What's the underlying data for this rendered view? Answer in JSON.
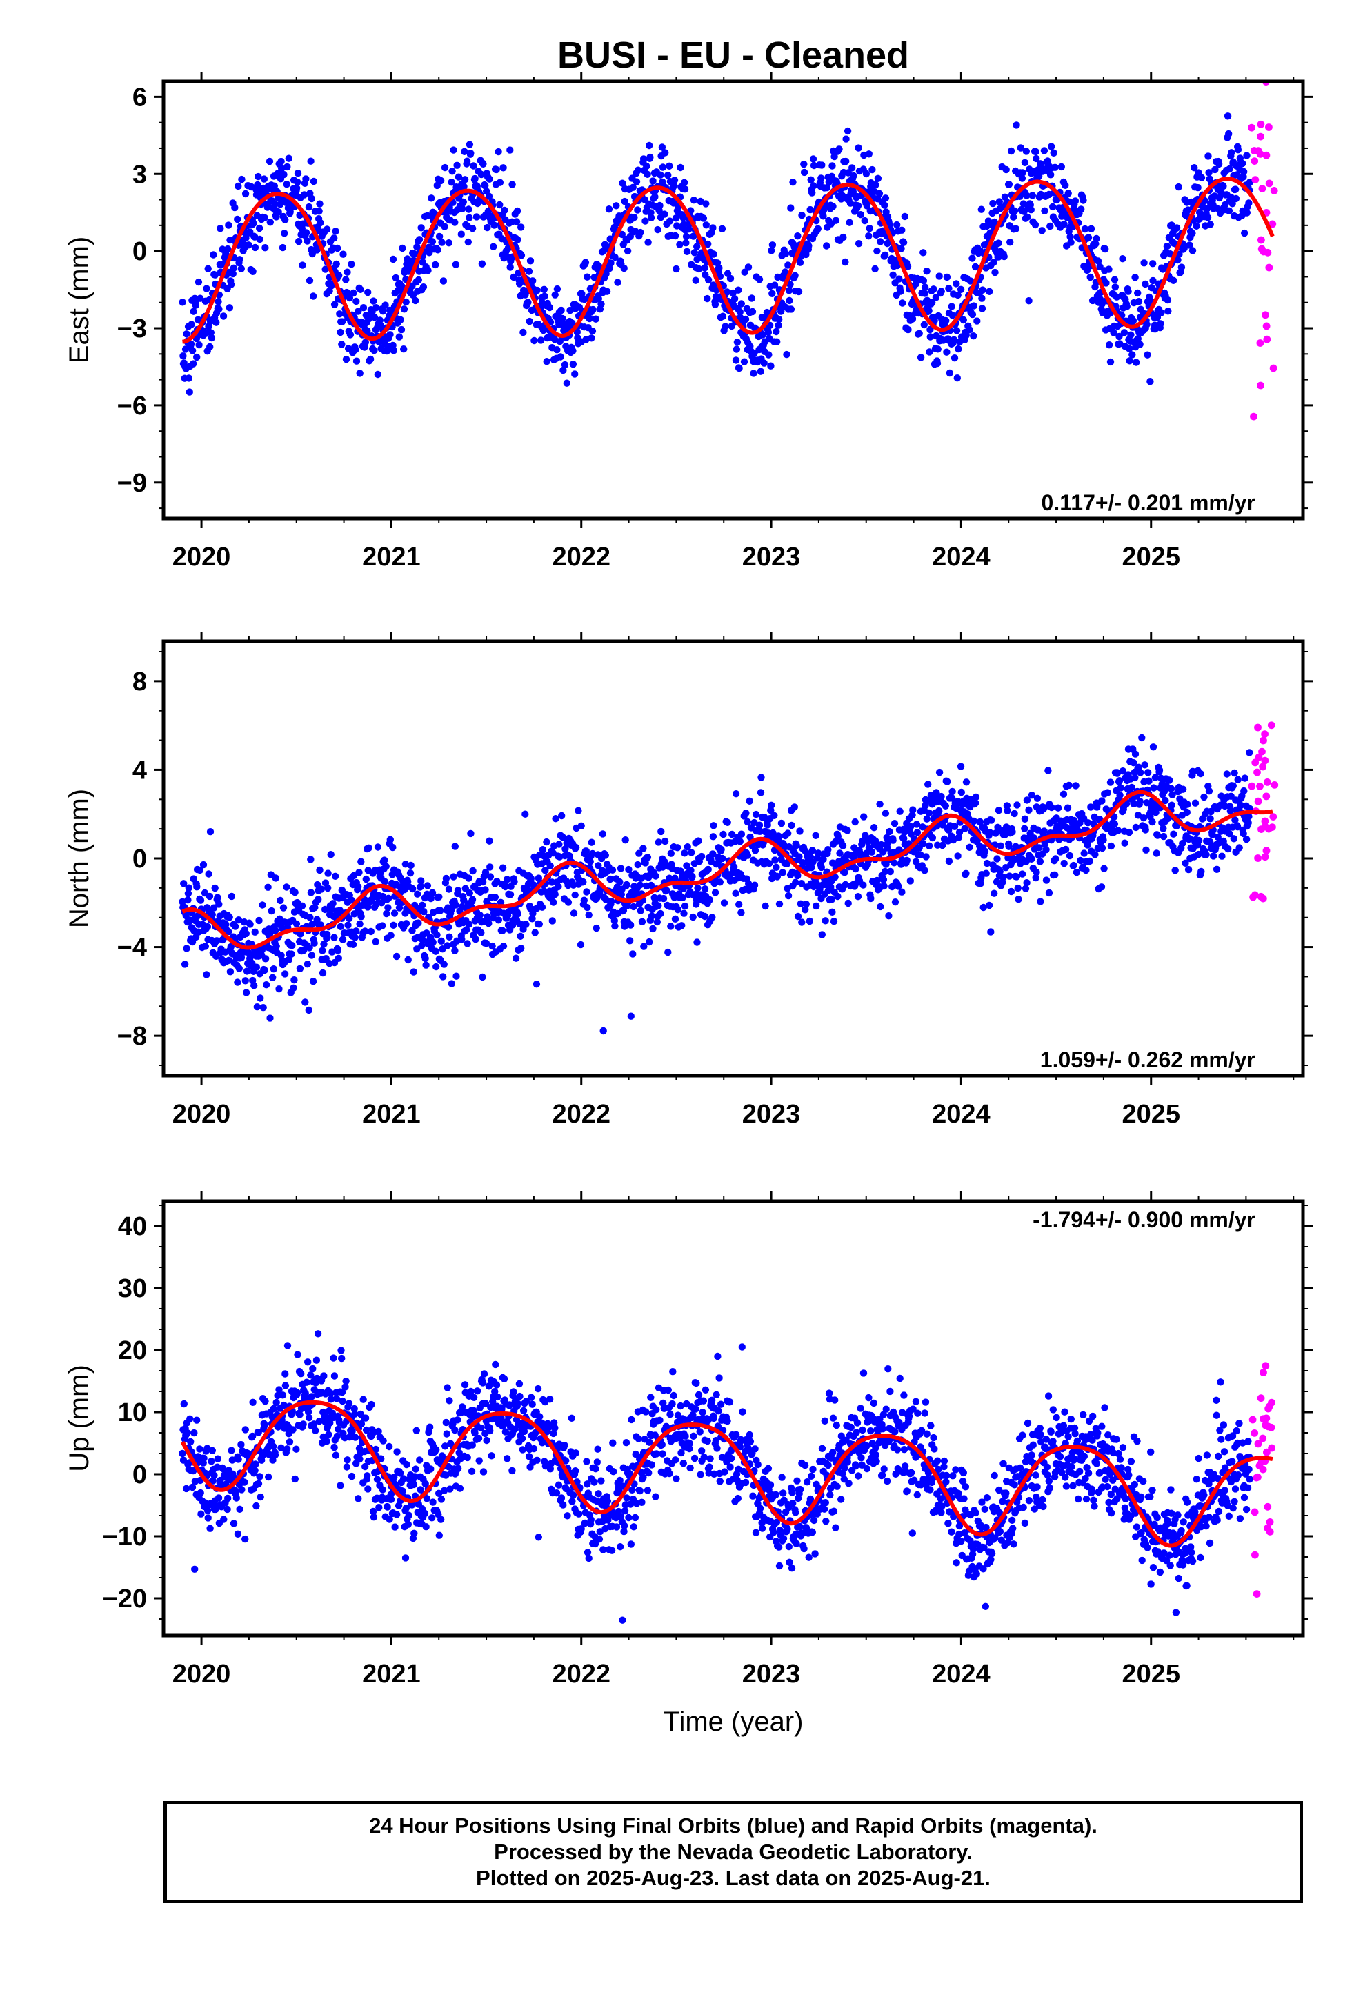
{
  "title": "BUSI  - EU - Cleaned",
  "xlabel": "Time (year)",
  "footer": {
    "line1": "24 Hour Positions Using Final Orbits (blue) and Rapid Orbits (magenta).",
    "line2": "Processed by the Nevada Geodetic Laboratory.",
    "line3": "Plotted on 2025-Aug-23. Last data on 2025-Aug-21."
  },
  "colors": {
    "final": "#0000ff",
    "rapid": "#ff00ff",
    "model": "#ff0000",
    "frame": "#000000"
  },
  "chart_data": [
    {
      "type": "scatter",
      "name": "east",
      "ylabel": "East (mm)",
      "rate": "0.117+/- 0.201 mm/yr",
      "xlim": [
        2019.8,
        2025.8
      ],
      "ylim": [
        -10.4,
        6.6
      ],
      "yticks": [
        -9,
        -6,
        -3,
        0,
        3,
        6
      ],
      "xticks": [
        2020,
        2021,
        2022,
        2023,
        2024,
        2025
      ],
      "final_range": [
        2019.9,
        2025.52
      ],
      "rapid_range": [
        2025.54,
        2025.64
      ],
      "model": {
        "offset": -0.15,
        "trend": 0.117,
        "annual_amp": 2.85,
        "annual_peak": 2020.4,
        "semi_amp": 0.2,
        "semi_peak": 2020.15
      },
      "scatter_sigma": 0.85,
      "rapid_sigma": 3.6,
      "samples": 2000
    },
    {
      "type": "scatter",
      "name": "north",
      "ylabel": "North (mm)",
      "rate": "1.059+/- 0.262 mm/yr",
      "xlim": [
        2019.8,
        2025.8
      ],
      "ylim": [
        -9.8,
        9.8
      ],
      "yticks": [
        -8,
        -4,
        0,
        4,
        8
      ],
      "xticks": [
        2020,
        2021,
        2022,
        2023,
        2024,
        2025
      ],
      "final_range": [
        2019.9,
        2025.52
      ],
      "rapid_range": [
        2025.54,
        2025.64
      ],
      "model": {
        "offset": -0.6,
        "trend": 1.059,
        "annual_amp": 0.8,
        "annual_peak": 2020.9,
        "semi_amp": 0.45,
        "semi_peak": 2020.45
      },
      "scatter_sigma": 1.1,
      "rapid_sigma": 2.5,
      "samples": 2000
    },
    {
      "type": "scatter",
      "name": "up",
      "ylabel": "Up (mm)",
      "rate": "-1.794+/- 0.900 mm/yr",
      "xlim": [
        2019.8,
        2025.8
      ],
      "ylim": [
        -26,
        44
      ],
      "yticks": [
        -20,
        -10,
        0,
        10,
        20,
        30,
        40
      ],
      "xticks": [
        2020,
        2021,
        2022,
        2023,
        2024,
        2025
      ],
      "final_range": [
        2019.9,
        2025.52
      ],
      "rapid_range": [
        2025.54,
        2025.64
      ],
      "model": {
        "offset": 1.5,
        "trend": -1.794,
        "annual_amp": 7.5,
        "annual_peak": 2020.6,
        "semi_amp": 1.2,
        "semi_peak": 2020.35
      },
      "scatter_sigma": 3.8,
      "rapid_sigma": 9,
      "samples": 2000
    }
  ]
}
